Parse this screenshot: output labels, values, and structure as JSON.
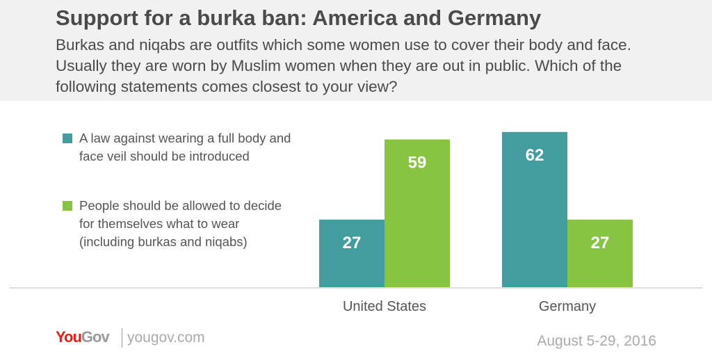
{
  "title": "Support for a burka ban: America and Germany",
  "subtitle": "Burkas and niqabs are outfits which some women use to cover their body and face. Usually they are worn by Muslim women when they are out in public. Which of the following statements comes closest to your view?",
  "footer": {
    "logo_you": "You",
    "logo_gov": "Gov",
    "site": "yougov.com",
    "date": "August 5-29, 2016"
  },
  "chart_data": {
    "type": "bar",
    "categories": [
      "United States",
      "Germany"
    ],
    "series": [
      {
        "name": "A law against wearing a full body and face veil should be introduced",
        "values": [
          27,
          62
        ],
        "color": "#439d9f"
      },
      {
        "name": "People should be allowed to decide for themselves what to wear (including burkas and niqabs)",
        "values": [
          59,
          27
        ],
        "color": "#86c441"
      }
    ],
    "ylim": [
      0,
      62
    ],
    "legend": "left"
  }
}
